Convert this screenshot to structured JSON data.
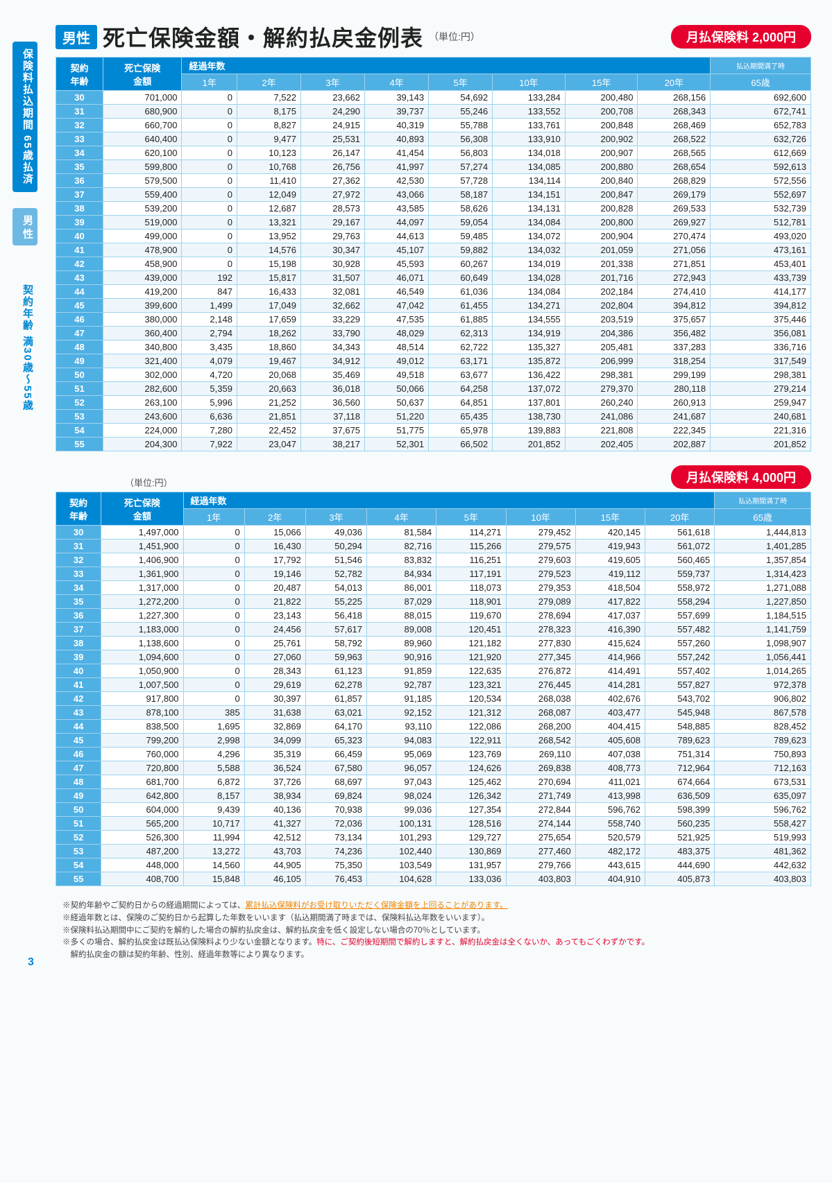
{
  "sidebar": {
    "period": "保険料払込期間 65歳払済",
    "gender": "男 性",
    "age_range": "契約年齢 満30歳〜55歳"
  },
  "header": {
    "gender_tag": "男性",
    "title": "死亡保険金額・解約払戻金例表",
    "unit": "（単位:円）",
    "premium1": "月払保険料 2,000円",
    "premium2": "月払保険料 4,000円",
    "unit2": "（単位:円）"
  },
  "table_headers": {
    "age": "契約\n年齢",
    "death": "死亡保険\n金額",
    "elapsed": "経過年数",
    "end_note": "払込期間満了時",
    "years": [
      "1年",
      "2年",
      "3年",
      "4年",
      "5年",
      "10年",
      "15年",
      "20年",
      "65歳"
    ]
  },
  "table1": [
    [
      "30",
      "701,000",
      "0",
      "7,522",
      "23,662",
      "39,143",
      "54,692",
      "133,284",
      "200,480",
      "268,156",
      "692,600"
    ],
    [
      "31",
      "680,900",
      "0",
      "8,175",
      "24,290",
      "39,737",
      "55,246",
      "133,552",
      "200,708",
      "268,343",
      "672,741"
    ],
    [
      "32",
      "660,700",
      "0",
      "8,827",
      "24,915",
      "40,319",
      "55,788",
      "133,761",
      "200,848",
      "268,469",
      "652,783"
    ],
    [
      "33",
      "640,400",
      "0",
      "9,477",
      "25,531",
      "40,893",
      "56,308",
      "133,910",
      "200,902",
      "268,522",
      "632,726"
    ],
    [
      "34",
      "620,100",
      "0",
      "10,123",
      "26,147",
      "41,454",
      "56,803",
      "134,018",
      "200,907",
      "268,565",
      "612,669"
    ],
    [
      "35",
      "599,800",
      "0",
      "10,768",
      "26,756",
      "41,997",
      "57,274",
      "134,085",
      "200,880",
      "268,654",
      "592,613"
    ],
    [
      "36",
      "579,500",
      "0",
      "11,410",
      "27,362",
      "42,530",
      "57,728",
      "134,114",
      "200,840",
      "268,829",
      "572,556"
    ],
    [
      "37",
      "559,400",
      "0",
      "12,049",
      "27,972",
      "43,066",
      "58,187",
      "134,151",
      "200,847",
      "269,179",
      "552,697"
    ],
    [
      "38",
      "539,200",
      "0",
      "12,687",
      "28,573",
      "43,585",
      "58,626",
      "134,131",
      "200,828",
      "269,533",
      "532,739"
    ],
    [
      "39",
      "519,000",
      "0",
      "13,321",
      "29,167",
      "44,097",
      "59,054",
      "134,084",
      "200,800",
      "269,927",
      "512,781"
    ],
    [
      "40",
      "499,000",
      "0",
      "13,952",
      "29,763",
      "44,613",
      "59,485",
      "134,072",
      "200,904",
      "270,474",
      "493,020"
    ],
    [
      "41",
      "478,900",
      "0",
      "14,576",
      "30,347",
      "45,107",
      "59,882",
      "134,032",
      "201,059",
      "271,056",
      "473,161"
    ],
    [
      "42",
      "458,900",
      "0",
      "15,198",
      "30,928",
      "45,593",
      "60,267",
      "134,019",
      "201,338",
      "271,851",
      "453,401"
    ],
    [
      "43",
      "439,000",
      "192",
      "15,817",
      "31,507",
      "46,071",
      "60,649",
      "134,028",
      "201,716",
      "272,943",
      "433,739"
    ],
    [
      "44",
      "419,200",
      "847",
      "16,433",
      "32,081",
      "46,549",
      "61,036",
      "134,084",
      "202,184",
      "274,410",
      "414,177"
    ],
    [
      "45",
      "399,600",
      "1,499",
      "17,049",
      "32,662",
      "47,042",
      "61,455",
      "134,271",
      "202,804",
      "394,812",
      "394,812"
    ],
    [
      "46",
      "380,000",
      "2,148",
      "17,659",
      "33,229",
      "47,535",
      "61,885",
      "134,555",
      "203,519",
      "375,657",
      "375,446"
    ],
    [
      "47",
      "360,400",
      "2,794",
      "18,262",
      "33,790",
      "48,029",
      "62,313",
      "134,919",
      "204,386",
      "356,482",
      "356,081"
    ],
    [
      "48",
      "340,800",
      "3,435",
      "18,860",
      "34,343",
      "48,514",
      "62,722",
      "135,327",
      "205,481",
      "337,283",
      "336,716"
    ],
    [
      "49",
      "321,400",
      "4,079",
      "19,467",
      "34,912",
      "49,012",
      "63,171",
      "135,872",
      "206,999",
      "318,254",
      "317,549"
    ],
    [
      "50",
      "302,000",
      "4,720",
      "20,068",
      "35,469",
      "49,518",
      "63,677",
      "136,422",
      "298,381",
      "299,199",
      "298,381"
    ],
    [
      "51",
      "282,600",
      "5,359",
      "20,663",
      "36,018",
      "50,066",
      "64,258",
      "137,072",
      "279,370",
      "280,118",
      "279,214"
    ],
    [
      "52",
      "263,100",
      "5,996",
      "21,252",
      "36,560",
      "50,637",
      "64,851",
      "137,801",
      "260,240",
      "260,913",
      "259,947"
    ],
    [
      "53",
      "243,600",
      "6,636",
      "21,851",
      "37,118",
      "51,220",
      "65,435",
      "138,730",
      "241,086",
      "241,687",
      "240,681"
    ],
    [
      "54",
      "224,000",
      "7,280",
      "22,452",
      "37,675",
      "51,775",
      "65,978",
      "139,883",
      "221,808",
      "222,345",
      "221,316"
    ],
    [
      "55",
      "204,300",
      "7,922",
      "23,047",
      "38,217",
      "52,301",
      "66,502",
      "201,852",
      "202,405",
      "202,887",
      "201,852"
    ]
  ],
  "table2": [
    [
      "30",
      "1,497,000",
      "0",
      "15,066",
      "49,036",
      "81,584",
      "114,271",
      "279,452",
      "420,145",
      "561,618",
      "1,444,813"
    ],
    [
      "31",
      "1,451,900",
      "0",
      "16,430",
      "50,294",
      "82,716",
      "115,266",
      "279,575",
      "419,943",
      "561,072",
      "1,401,285"
    ],
    [
      "32",
      "1,406,900",
      "0",
      "17,792",
      "51,546",
      "83,832",
      "116,251",
      "279,603",
      "419,605",
      "560,465",
      "1,357,854"
    ],
    [
      "33",
      "1,361,900",
      "0",
      "19,146",
      "52,782",
      "84,934",
      "117,191",
      "279,523",
      "419,112",
      "559,737",
      "1,314,423"
    ],
    [
      "34",
      "1,317,000",
      "0",
      "20,487",
      "54,013",
      "86,001",
      "118,073",
      "279,353",
      "418,504",
      "558,972",
      "1,271,088"
    ],
    [
      "35",
      "1,272,200",
      "0",
      "21,822",
      "55,225",
      "87,029",
      "118,901",
      "279,089",
      "417,822",
      "558,294",
      "1,227,850"
    ],
    [
      "36",
      "1,227,300",
      "0",
      "23,143",
      "56,418",
      "88,015",
      "119,670",
      "278,694",
      "417,037",
      "557,699",
      "1,184,515"
    ],
    [
      "37",
      "1,183,000",
      "0",
      "24,456",
      "57,617",
      "89,008",
      "120,451",
      "278,323",
      "416,390",
      "557,482",
      "1,141,759"
    ],
    [
      "38",
      "1,138,600",
      "0",
      "25,761",
      "58,792",
      "89,960",
      "121,182",
      "277,830",
      "415,624",
      "557,260",
      "1,098,907"
    ],
    [
      "39",
      "1,094,600",
      "0",
      "27,060",
      "59,963",
      "90,916",
      "121,920",
      "277,345",
      "414,966",
      "557,242",
      "1,056,441"
    ],
    [
      "40",
      "1,050,900",
      "0",
      "28,343",
      "61,123",
      "91,859",
      "122,635",
      "276,872",
      "414,491",
      "557,402",
      "1,014,265"
    ],
    [
      "41",
      "1,007,500",
      "0",
      "29,619",
      "62,278",
      "92,787",
      "123,321",
      "276,445",
      "414,281",
      "557,827",
      "972,378"
    ],
    [
      "42",
      "917,800",
      "0",
      "30,397",
      "61,857",
      "91,185",
      "120,534",
      "268,038",
      "402,676",
      "543,702",
      "906,802"
    ],
    [
      "43",
      "878,100",
      "385",
      "31,638",
      "63,021",
      "92,152",
      "121,312",
      "268,087",
      "403,477",
      "545,948",
      "867,578"
    ],
    [
      "44",
      "838,500",
      "1,695",
      "32,869",
      "64,170",
      "93,110",
      "122,086",
      "268,200",
      "404,415",
      "548,885",
      "828,452"
    ],
    [
      "45",
      "799,200",
      "2,998",
      "34,099",
      "65,323",
      "94,083",
      "122,911",
      "268,542",
      "405,608",
      "789,623",
      "789,623"
    ],
    [
      "46",
      "760,000",
      "4,296",
      "35,319",
      "66,459",
      "95,069",
      "123,769",
      "269,110",
      "407,038",
      "751,314",
      "750,893"
    ],
    [
      "47",
      "720,800",
      "5,588",
      "36,524",
      "67,580",
      "96,057",
      "124,626",
      "269,838",
      "408,773",
      "712,964",
      "712,163"
    ],
    [
      "48",
      "681,700",
      "6,872",
      "37,726",
      "68,697",
      "97,043",
      "125,462",
      "270,694",
      "411,021",
      "674,664",
      "673,531"
    ],
    [
      "49",
      "642,800",
      "8,157",
      "38,934",
      "69,824",
      "98,024",
      "126,342",
      "271,749",
      "413,998",
      "636,509",
      "635,097"
    ],
    [
      "50",
      "604,000",
      "9,439",
      "40,136",
      "70,938",
      "99,036",
      "127,354",
      "272,844",
      "596,762",
      "598,399",
      "596,762"
    ],
    [
      "51",
      "565,200",
      "10,717",
      "41,327",
      "72,036",
      "100,131",
      "128,516",
      "274,144",
      "558,740",
      "560,235",
      "558,427"
    ],
    [
      "52",
      "526,300",
      "11,994",
      "42,512",
      "73,134",
      "101,293",
      "129,727",
      "275,654",
      "520,579",
      "521,925",
      "519,993"
    ],
    [
      "53",
      "487,200",
      "13,272",
      "43,703",
      "74,236",
      "102,440",
      "130,869",
      "277,460",
      "482,172",
      "483,375",
      "481,362"
    ],
    [
      "54",
      "448,000",
      "14,560",
      "44,905",
      "75,350",
      "103,549",
      "131,957",
      "279,766",
      "443,615",
      "444,690",
      "442,632"
    ],
    [
      "55",
      "408,700",
      "15,848",
      "46,105",
      "76,453",
      "104,628",
      "133,036",
      "403,803",
      "404,910",
      "405,873",
      "403,803"
    ]
  ],
  "notes": {
    "n1a": "※契約年齢やご契約日からの経過期間によっては、",
    "n1b": "累計払込保険料がお受け取りいただく保険金額を上回ることがあります。",
    "n2": "※経過年数とは、保険のご契約日から起算した年数をいいます（払込期間満了時までは、保険料払込年数をいいます）。",
    "n3": "※保険料払込期間中にご契約を解約した場合の解約払戻金は、解約払戻金を低く設定しない場合の70％としています。",
    "n4a": "※多くの場合、解約払戻金は既払込保険料より少ない金額となります。",
    "n4b": "特に、ご契約後短期間で解約しますと、解約払戻金は全くないか、あってもごくわずかです。",
    "n5": "　解約払戻金の額は契約年齢、性別、経過年数等により異なります。"
  },
  "page": "3"
}
